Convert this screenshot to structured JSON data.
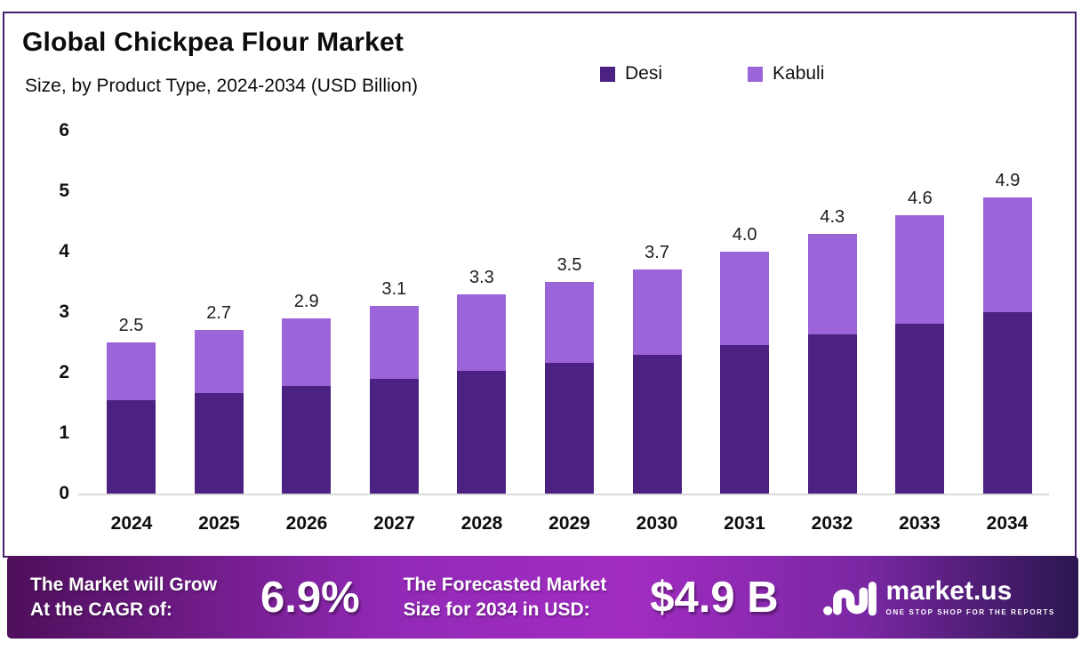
{
  "title": "Global Chickpea Flour Market",
  "subtitle": "Size, by Product Type, 2024-2034 (USD Billion)",
  "chart_data": {
    "type": "bar",
    "stacked": true,
    "title": "Global Chickpea Flour Market Size, by Product Type, 2024-2034 (USD Billion)",
    "categories": [
      "2024",
      "2025",
      "2026",
      "2027",
      "2028",
      "2029",
      "2030",
      "2031",
      "2032",
      "2033",
      "2034"
    ],
    "series": [
      {
        "name": "Desi",
        "color": "#4B2182",
        "values": [
          1.55,
          1.66,
          1.78,
          1.9,
          2.03,
          2.16,
          2.3,
          2.46,
          2.63,
          2.81,
          3.0
        ]
      },
      {
        "name": "Kabuli",
        "color": "#9C64D9",
        "values": [
          0.95,
          1.04,
          1.12,
          1.2,
          1.27,
          1.34,
          1.4,
          1.54,
          1.67,
          1.79,
          1.9
        ]
      }
    ],
    "totals_labels": [
      "2.5",
      "2.7",
      "2.9",
      "3.1",
      "3.3",
      "3.5",
      "3.7",
      "4.0",
      "4.3",
      "4.6",
      "4.9"
    ],
    "xlabel": "",
    "ylabel": "",
    "ylim": [
      0,
      6
    ],
    "yticks": [
      0,
      1,
      2,
      3,
      4,
      5,
      6
    ],
    "grid": false,
    "legend_position": "top"
  },
  "footer": {
    "growth_line1": "The Market will Grow",
    "growth_line2": "At the CAGR of:",
    "cagr_value": "6.9%",
    "forecast_line1": "The Forecasted Market",
    "forecast_line2": "Size for 2034 in USD:",
    "forecast_value": "$4.9 B",
    "brand_name": "market.us",
    "brand_tagline": "ONE STOP SHOP FOR THE REPORTS"
  },
  "colors": {
    "border": "#46226E",
    "baseline": "#D9D9D9",
    "g1": "#4E0F5B",
    "g2": "#9229B6",
    "g3": "#A22CC2",
    "g4": "#7A27A3",
    "g5": "#2B1650"
  }
}
